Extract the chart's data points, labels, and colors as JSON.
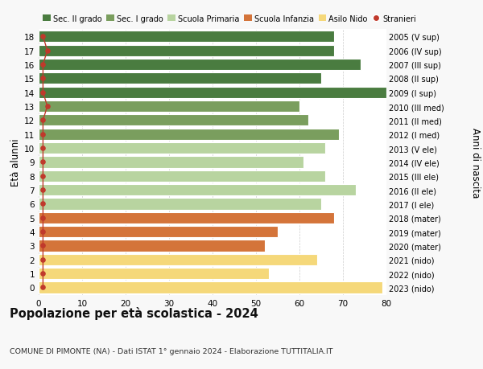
{
  "ages": [
    18,
    17,
    16,
    15,
    14,
    13,
    12,
    11,
    10,
    9,
    8,
    7,
    6,
    5,
    4,
    3,
    2,
    1,
    0
  ],
  "values": [
    68,
    68,
    74,
    65,
    80,
    60,
    62,
    69,
    66,
    61,
    66,
    73,
    65,
    68,
    55,
    52,
    64,
    53,
    79
  ],
  "right_labels": [
    "2005 (V sup)",
    "2006 (IV sup)",
    "2007 (III sup)",
    "2008 (II sup)",
    "2009 (I sup)",
    "2010 (III med)",
    "2011 (II med)",
    "2012 (I med)",
    "2013 (V ele)",
    "2014 (IV ele)",
    "2015 (III ele)",
    "2016 (II ele)",
    "2017 (I ele)",
    "2018 (mater)",
    "2019 (mater)",
    "2020 (mater)",
    "2021 (nido)",
    "2022 (nido)",
    "2023 (nido)"
  ],
  "bar_colors": [
    "#4a7c40",
    "#4a7c40",
    "#4a7c40",
    "#4a7c40",
    "#4a7c40",
    "#7a9e5e",
    "#7a9e5e",
    "#7a9e5e",
    "#b8d4a0",
    "#b8d4a0",
    "#b8d4a0",
    "#b8d4a0",
    "#b8d4a0",
    "#d4743a",
    "#d4743a",
    "#d4743a",
    "#f5d87a",
    "#f5d87a",
    "#f5d87a"
  ],
  "legend_labels": [
    "Sec. II grado",
    "Sec. I grado",
    "Scuola Primaria",
    "Scuola Infanzia",
    "Asilo Nido",
    "Stranieri"
  ],
  "legend_colors": [
    "#4a7c40",
    "#7a9e5e",
    "#b8d4a0",
    "#d4743a",
    "#f5d87a",
    "#c0392b"
  ],
  "title": "Popolazione per età scolastica - 2024",
  "subtitle": "COMUNE DI PIMONTE (NA) - Dati ISTAT 1° gennaio 2024 - Elaborazione TUTTITALIA.IT",
  "xlabel_left": "Età alunni",
  "xlabel_right": "Anni di nascita",
  "xlim": [
    0,
    80
  ],
  "xticks": [
    0,
    10,
    20,
    30,
    40,
    50,
    60,
    70,
    80
  ],
  "background_color": "#f8f8f8",
  "bar_background": "#ffffff",
  "stranieri_color": "#c0392b",
  "stranieri_x_values": [
    1,
    2,
    1,
    1,
    1,
    2,
    1,
    1,
    1,
    1,
    1,
    1,
    1,
    1,
    1,
    1,
    1,
    1,
    1
  ]
}
